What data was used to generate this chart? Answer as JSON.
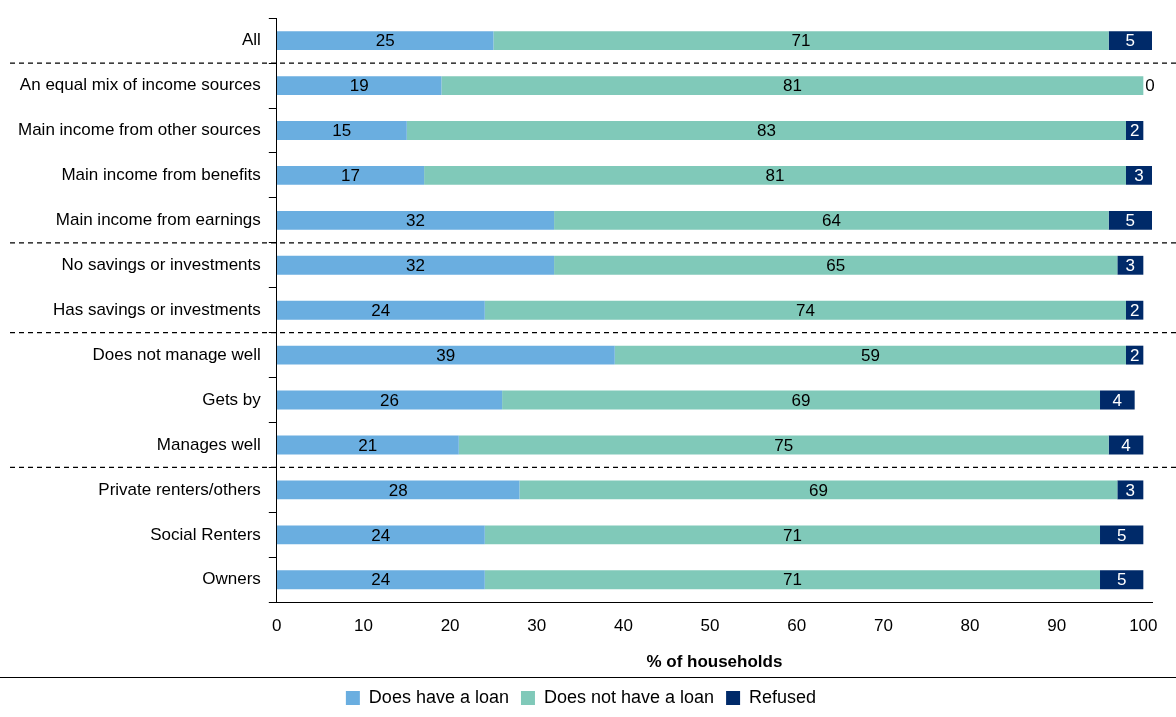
{
  "chart_data": {
    "type": "bar",
    "orientation": "horizontal",
    "stacked": true,
    "xlabel": "% of households",
    "categories": [
      "All",
      "An equal mix of income sources",
      "Main income from other sources",
      "Main income from benefits",
      "Main income from earnings",
      "No savings or investments",
      "Has savings or investments",
      "Does not manage well",
      "Gets by",
      "Manages well",
      "Private renters/others",
      "Social Renters",
      "Owners"
    ],
    "series": [
      {
        "name": "Does have a loan",
        "color": "#6aaee0",
        "values": [
          25,
          19,
          15,
          17,
          32,
          32,
          24,
          39,
          26,
          21,
          28,
          24,
          24
        ]
      },
      {
        "name": "Does not have a loan",
        "color": "#80c9b9",
        "values": [
          71,
          81,
          83,
          81,
          64,
          65,
          74,
          59,
          69,
          75,
          69,
          71,
          71
        ]
      },
      {
        "name": "Refused",
        "color": "#002a69",
        "values": [
          5,
          0,
          2,
          3,
          5,
          3,
          2,
          2,
          4,
          4,
          3,
          5,
          5
        ]
      }
    ],
    "xlim": [
      0,
      101
    ],
    "xticks": [
      0,
      10,
      20,
      30,
      40,
      50,
      60,
      70,
      80,
      90,
      100
    ],
    "data_labels": true,
    "grid": false,
    "legend": "bottom"
  }
}
